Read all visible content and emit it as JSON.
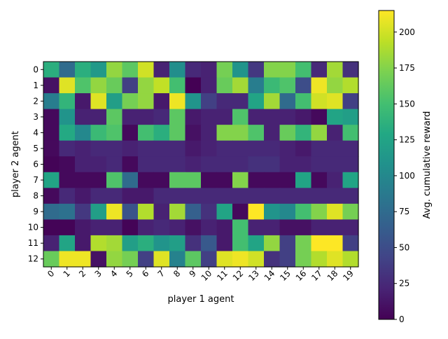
{
  "chart_data": {
    "type": "heatmap",
    "title": "",
    "xlabel": "player 1 agent",
    "ylabel": "player 2 agent",
    "x_ticks": [
      "0",
      "1",
      "2",
      "3",
      "4",
      "5",
      "6",
      "7",
      "8",
      "9",
      "10",
      "11",
      "12",
      "13",
      "14",
      "15",
      "16",
      "17",
      "18",
      "19"
    ],
    "y_ticks": [
      "0",
      "1",
      "2",
      "3",
      "4",
      "5",
      "6",
      "7",
      "8",
      "9",
      "10",
      "11",
      "12"
    ],
    "colormap": "viridis",
    "colorbar": {
      "label": "Avg. cumulative reward",
      "min": 0,
      "max": 215,
      "ticks": [
        "0",
        "25",
        "50",
        "75",
        "100",
        "125",
        "150",
        "175",
        "200"
      ]
    },
    "values": [
      [
        135,
        75,
        135,
        115,
        180,
        160,
        200,
        20,
        105,
        25,
        20,
        170,
        110,
        35,
        175,
        175,
        150,
        25,
        185,
        30
      ],
      [
        10,
        205,
        155,
        180,
        165,
        40,
        180,
        195,
        150,
        0,
        20,
        165,
        185,
        90,
        145,
        155,
        50,
        210,
        180,
        190
      ],
      [
        90,
        140,
        15,
        205,
        120,
        170,
        180,
        15,
        210,
        110,
        40,
        25,
        25,
        125,
        185,
        75,
        150,
        200,
        205,
        40
      ],
      [
        5,
        110,
        20,
        20,
        160,
        20,
        20,
        25,
        160,
        15,
        20,
        20,
        155,
        20,
        20,
        20,
        15,
        5,
        125,
        120
      ],
      [
        5,
        130,
        100,
        145,
        155,
        5,
        150,
        135,
        160,
        10,
        20,
        175,
        175,
        155,
        20,
        165,
        140,
        180,
        20,
        150
      ],
      [
        5,
        25,
        20,
        25,
        25,
        20,
        25,
        25,
        25,
        15,
        20,
        25,
        25,
        25,
        25,
        20,
        15,
        25,
        25,
        25
      ],
      [
        2,
        5,
        20,
        20,
        25,
        5,
        25,
        25,
        25,
        20,
        25,
        25,
        25,
        30,
        30,
        20,
        20,
        25,
        25,
        25
      ],
      [
        125,
        5,
        5,
        5,
        155,
        75,
        5,
        5,
        160,
        160,
        5,
        5,
        175,
        5,
        5,
        5,
        125,
        5,
        20,
        125
      ],
      [
        5,
        25,
        15,
        25,
        25,
        15,
        15,
        25,
        25,
        25,
        25,
        25,
        25,
        25,
        25,
        25,
        25,
        25,
        25,
        25
      ],
      [
        75,
        80,
        35,
        120,
        210,
        55,
        190,
        20,
        185,
        65,
        30,
        125,
        5,
        215,
        110,
        100,
        150,
        175,
        205,
        170
      ],
      [
        2,
        2,
        15,
        20,
        20,
        2,
        20,
        25,
        20,
        10,
        20,
        15,
        150,
        20,
        20,
        10,
        10,
        20,
        20,
        20
      ],
      [
        20,
        125,
        15,
        190,
        185,
        120,
        135,
        110,
        120,
        30,
        60,
        15,
        150,
        125,
        180,
        40,
        170,
        215,
        215,
        40
      ],
      [
        165,
        210,
        210,
        10,
        180,
        170,
        40,
        205,
        95,
        160,
        40,
        205,
        210,
        200,
        30,
        40,
        170,
        190,
        205,
        190
      ]
    ]
  }
}
